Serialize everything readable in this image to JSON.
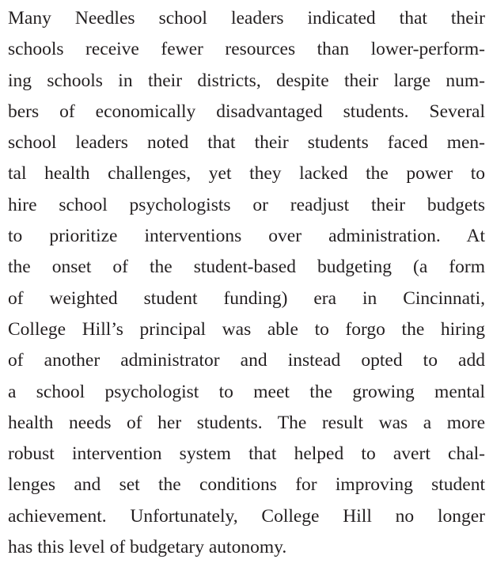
{
  "paragraph": {
    "lines": [
      "Many Needles school leaders indicated that their",
      "schools receive fewer resources than lower-perform-",
      "ing schools in their districts, despite their large num-",
      "bers of economically disadvantaged students. Several",
      "school leaders noted that their students faced men-",
      "tal health challenges, yet they lacked the power to",
      "hire school psychologists or readjust their budgets",
      "to prioritize interventions over administration. At",
      "the onset of the student-based budgeting (a form",
      "of weighted student funding) era in Cincinnati,",
      "College Hill’s principal was able to forgo the hiring",
      "of another administrator and instead opted to add",
      "a school psychologist to meet the growing mental",
      "health needs of her students. The result was a more",
      "robust intervention system that helped to avert chal-",
      "lenges and set the conditions for improving student",
      "achievement. Unfortunately, College Hill no longer",
      "has this level of budgetary autonomy."
    ]
  }
}
